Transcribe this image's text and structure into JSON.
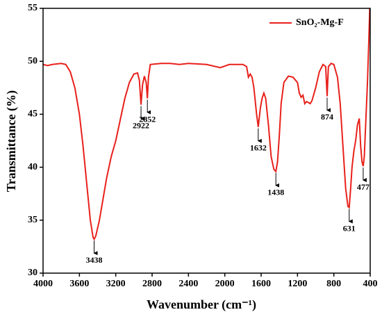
{
  "chart_data": {
    "type": "line",
    "x_label": "Wavenumber (cm⁻¹)",
    "y_label": "Transmittance (%)",
    "xlim": [
      4000,
      400
    ],
    "xticks": [
      4000,
      3600,
      3200,
      2800,
      2400,
      2000,
      1600,
      1200,
      800,
      400
    ],
    "ylim": [
      30,
      55
    ],
    "yticks": [
      30,
      35,
      40,
      45,
      50,
      55
    ],
    "legend": "upper right",
    "x": [
      4000,
      3950,
      3900,
      3800,
      3750,
      3700,
      3650,
      3600,
      3560,
      3520,
      3480,
      3450,
      3438,
      3420,
      3380,
      3340,
      3300,
      3250,
      3200,
      3150,
      3100,
      3050,
      3000,
      2960,
      2940,
      2922,
      2905,
      2885,
      2865,
      2852,
      2840,
      2820,
      2700,
      2600,
      2500,
      2400,
      2200,
      2050,
      1950,
      1800,
      1760,
      1740,
      1720,
      1700,
      1680,
      1650,
      1632,
      1610,
      1590,
      1570,
      1550,
      1520,
      1490,
      1460,
      1438,
      1420,
      1400,
      1380,
      1350,
      1300,
      1250,
      1200,
      1180,
      1160,
      1140,
      1120,
      1100,
      1060,
      1040,
      1000,
      960,
      920,
      890,
      874,
      860,
      830,
      800,
      760,
      730,
      700,
      670,
      645,
      631,
      615,
      600,
      580,
      560,
      540,
      520,
      505,
      490,
      477,
      465,
      450,
      430,
      415,
      405
    ],
    "series": [
      {
        "name": "SnO₂-Mg-F",
        "color": "#e8201a",
        "values": [
          49.7,
          49.6,
          49.7,
          49.8,
          49.7,
          49.0,
          47.5,
          45.0,
          42.0,
          38.5,
          35.0,
          33.4,
          33.2,
          33.5,
          35.0,
          37.0,
          39.0,
          41.0,
          42.5,
          44.5,
          46.5,
          48.0,
          48.8,
          48.9,
          48.2,
          45.9,
          47.8,
          48.6,
          48.0,
          46.5,
          48.5,
          49.7,
          49.8,
          49.8,
          49.7,
          49.8,
          49.7,
          49.4,
          49.7,
          49.7,
          49.5,
          48.5,
          48.8,
          48.5,
          47.5,
          45.0,
          43.8,
          45.5,
          46.5,
          47.0,
          46.5,
          44.0,
          41.0,
          39.8,
          39.6,
          40.5,
          43.0,
          46.0,
          48.0,
          48.6,
          48.5,
          48.0,
          47.0,
          46.6,
          46.8,
          46.0,
          46.2,
          46.0,
          46.3,
          47.5,
          49.0,
          49.7,
          49.5,
          46.7,
          49.5,
          49.8,
          49.7,
          48.5,
          46.0,
          42.0,
          38.0,
          36.3,
          36.2,
          38.0,
          40.0,
          41.5,
          42.5,
          44.0,
          44.6,
          42.0,
          40.5,
          40.1,
          41.0,
          44.0,
          48.0,
          52.0,
          55.0
        ]
      }
    ],
    "annotations": [
      {
        "x": 3438
      },
      {
        "x": 2922
      },
      {
        "x": 2852
      },
      {
        "x": 1632
      },
      {
        "x": 1438
      },
      {
        "x": 874
      },
      {
        "x": 631
      },
      {
        "x": 477
      }
    ]
  }
}
